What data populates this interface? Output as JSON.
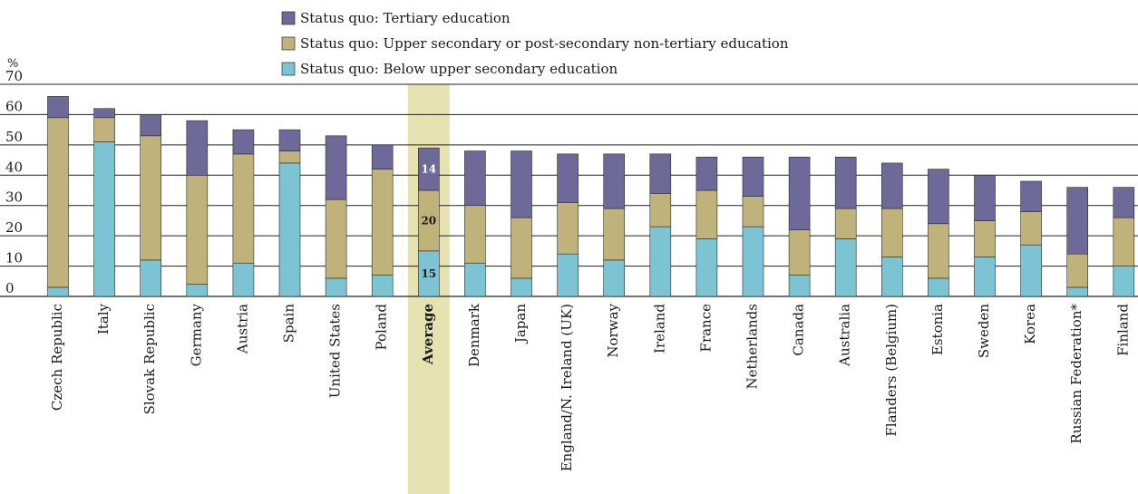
{
  "chart_data": {
    "type": "bar",
    "stacked": true,
    "unit_label": "%",
    "ylim": [
      0,
      70
    ],
    "yticks": [
      0,
      10,
      20,
      30,
      40,
      50,
      60,
      70
    ],
    "grid": true,
    "legend_position": "top-center",
    "categories": [
      "Czech Republic",
      "Italy",
      "Slovak Republic",
      "Germany",
      "Austria",
      "Spain",
      "United States",
      "Poland",
      "Average",
      "Denmark",
      "Japan",
      "England/N. Ireland (UK)",
      "Norway",
      "Ireland",
      "France",
      "Netherlands",
      "Canada",
      "Australia",
      "Flanders (Belgium)",
      "Estonia",
      "Sweden",
      "Korea",
      "Russian Federation*",
      "Finland"
    ],
    "highlight_category": "Average",
    "series": [
      {
        "name": "Status quo: Below upper secondary education",
        "color": "#7cc3d4",
        "values": [
          3,
          51,
          12,
          4,
          11,
          44,
          6,
          7,
          15,
          11,
          6,
          14,
          12,
          23,
          19,
          23,
          7,
          19,
          13,
          6,
          13,
          17,
          3,
          10
        ]
      },
      {
        "name": "Status quo: Upper secondary or post-secondary non-tertiary education",
        "color": "#bfb27a",
        "values": [
          56,
          8,
          41,
          36,
          36,
          4,
          26,
          35,
          20,
          19,
          20,
          17,
          17,
          11,
          16,
          10,
          15,
          10,
          16,
          18,
          12,
          11,
          11,
          16
        ]
      },
      {
        "name": "Status quo: Tertiary education",
        "color": "#6d6a9a",
        "values": [
          7,
          3,
          7,
          18,
          8,
          7,
          21,
          8,
          14,
          18,
          22,
          16,
          18,
          13,
          11,
          13,
          24,
          17,
          15,
          18,
          15,
          10,
          22,
          10
        ]
      }
    ],
    "data_labels": [
      {
        "category": "Average",
        "series": 0,
        "text": "15"
      },
      {
        "category": "Average",
        "series": 1,
        "text": "20"
      },
      {
        "category": "Average",
        "series": 2,
        "text": "14"
      }
    ]
  }
}
